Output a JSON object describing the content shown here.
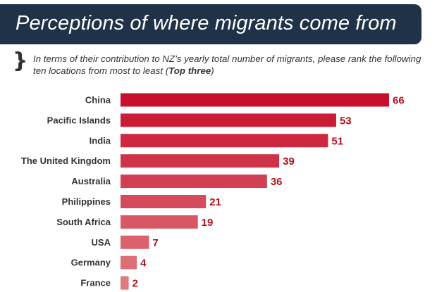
{
  "title": "Perceptions of where migrants come from",
  "subtitle_main": "In terms of their contribution to NZ’s yearly total number of migrants, please rank the following ten locations from most to least (",
  "subtitle_emph": "Top three",
  "subtitle_end": ")",
  "colors": {
    "banner": "#1f3247",
    "bar_dark": "#c8102e",
    "bar_light": "#e07a7f",
    "value_text": "#b5121b"
  },
  "chart_data": {
    "type": "bar",
    "orientation": "horizontal",
    "categories": [
      "China",
      "Pacific Islands",
      "India",
      "The United Kingdom",
      "Australia",
      "Philippines",
      "South Africa",
      "USA",
      "Germany",
      "France"
    ],
    "values": [
      66,
      53,
      51,
      39,
      36,
      21,
      19,
      7,
      4,
      2
    ],
    "value_labels": [
      "66",
      "53",
      "51",
      "39",
      "36",
      "21",
      "19",
      "7",
      "4",
      "2"
    ],
    "xlim": [
      0,
      66
    ],
    "grid": false,
    "legend": "none"
  }
}
